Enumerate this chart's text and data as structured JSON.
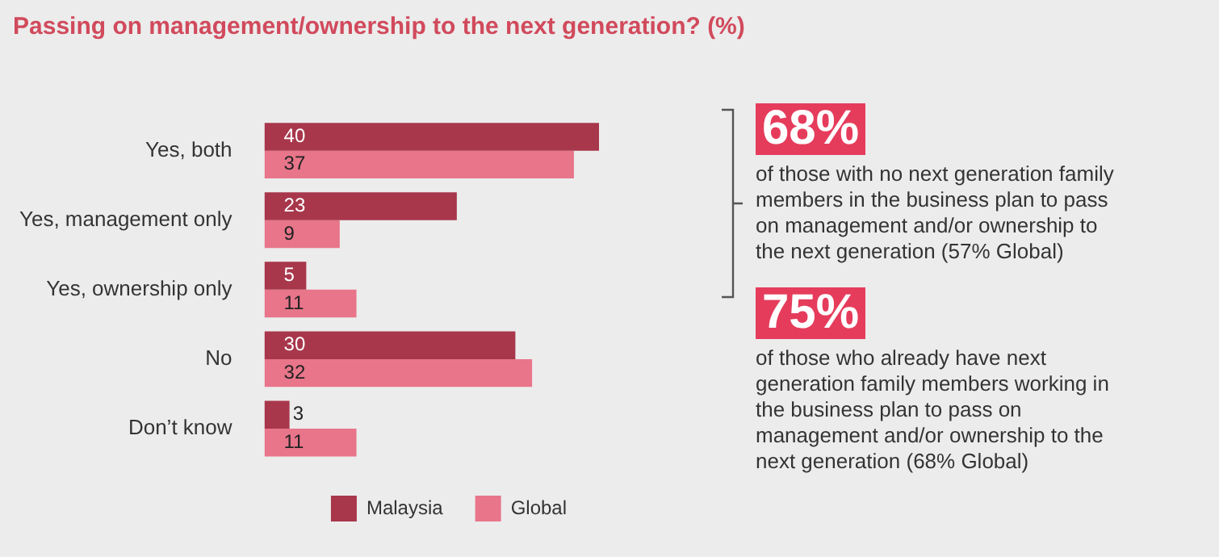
{
  "chart_data": {
    "type": "bar",
    "orientation": "horizontal",
    "title": "Passing on management/ownership to the next generation? (%)",
    "categories": [
      "Yes, both",
      "Yes, management only",
      "Yes, ownership only",
      "No",
      "Don’t know"
    ],
    "series": [
      {
        "name": "Malaysia",
        "color": "#a8374b",
        "values": [
          40,
          23,
          5,
          30,
          3
        ]
      },
      {
        "name": "Global",
        "color": "#e8758a",
        "values": [
          37,
          9,
          11,
          32,
          11
        ]
      }
    ],
    "data_labels": true,
    "legend": "bottom right",
    "annotations": [
      "68%",
      "of those with no next generation family members in the business plan to pass on management and/or ownership to the next generation (57% Global)",
      "75%",
      "of those who already have next generation family members working in the business plan to pass on management and/or ownership to the next generation (68% Global)"
    ]
  }
}
